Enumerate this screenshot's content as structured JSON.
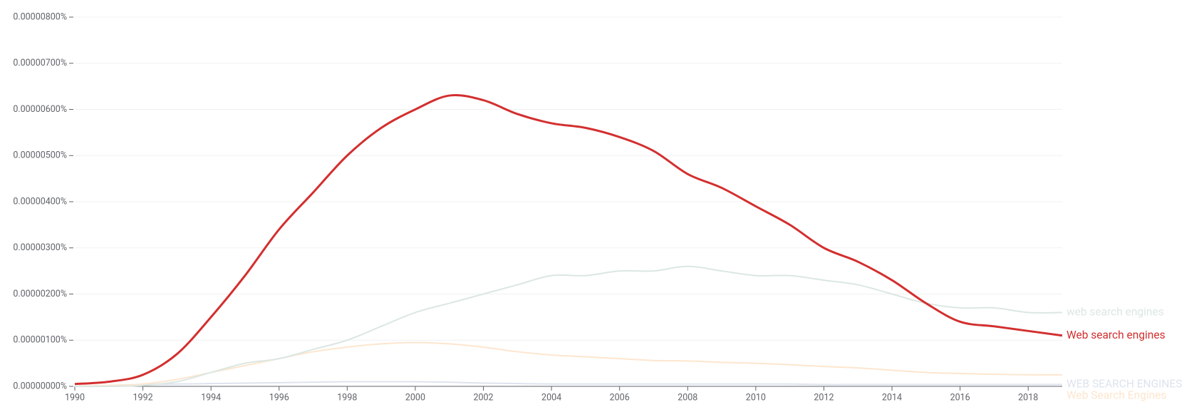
{
  "chart_data": {
    "type": "line",
    "x": [
      1990,
      1991,
      1992,
      1993,
      1994,
      1995,
      1996,
      1997,
      1998,
      1999,
      2000,
      2001,
      2002,
      2003,
      2004,
      2005,
      2006,
      2007,
      2008,
      2009,
      2010,
      2011,
      2012,
      2013,
      2014,
      2015,
      2016,
      2017,
      2018,
      2019
    ],
    "xlim": [
      1990,
      2019
    ],
    "xticks": [
      1990,
      1992,
      1994,
      1996,
      1998,
      2000,
      2002,
      2004,
      2006,
      2008,
      2010,
      2012,
      2014,
      2016,
      2018
    ],
    "ylim": [
      0,
      8e-06
    ],
    "yticks": [
      {
        "value": 0,
        "label": "0.00000000%"
      },
      {
        "value": 1e-06,
        "label": "0.00000100%"
      },
      {
        "value": 2e-06,
        "label": "0.00000200%"
      },
      {
        "value": 3e-06,
        "label": "0.00000300%"
      },
      {
        "value": 4e-06,
        "label": "0.00000400%"
      },
      {
        "value": 5e-06,
        "label": "0.00000500%"
      },
      {
        "value": 6e-06,
        "label": "0.00000600%"
      },
      {
        "value": 7e-06,
        "label": "0.00000700%"
      },
      {
        "value": 8e-06,
        "label": "0.00000800%"
      }
    ],
    "grid": true,
    "series": [
      {
        "name": "WEB SEARCH ENGINES",
        "color": "#dde3ee",
        "values": [
          0,
          2e-08,
          4e-08,
          5e-08,
          6e-08,
          7e-08,
          8e-08,
          9e-08,
          1e-07,
          1e-07,
          1e-07,
          9e-08,
          7e-08,
          6e-08,
          5e-08,
          5e-08,
          5e-08,
          5e-08,
          5e-08,
          5e-08,
          5e-08,
          5e-08,
          4e-08,
          4e-08,
          4e-08,
          4e-08,
          4e-08,
          4e-08,
          4e-08,
          4e-08
        ]
      },
      {
        "name": "Web Search Engines",
        "color": "#fde6cf",
        "values": [
          0,
          2e-08,
          5e-08,
          1.5e-07,
          3e-07,
          4.5e-07,
          6e-07,
          7.5e-07,
          8.5e-07,
          9.2e-07,
          9.5e-07,
          9.2e-07,
          8.5e-07,
          7.5e-07,
          6.8e-07,
          6.4e-07,
          6e-07,
          5.6e-07,
          5.5e-07,
          5.2e-07,
          5e-07,
          4.7e-07,
          4.3e-07,
          4e-07,
          3.5e-07,
          3e-07,
          2.8e-07,
          2.6e-07,
          2.5e-07,
          2.5e-07
        ]
      },
      {
        "name": "web search engines",
        "color": "#dbe7e3",
        "values": [
          0,
          0,
          2e-08,
          1e-07,
          3e-07,
          5e-07,
          6e-07,
          8e-07,
          1e-06,
          1.3e-06,
          1.6e-06,
          1.8e-06,
          2e-06,
          2.2e-06,
          2.4e-06,
          2.4e-06,
          2.5e-06,
          2.5e-06,
          2.6e-06,
          2.5e-06,
          2.4e-06,
          2.4e-06,
          2.3e-06,
          2.2e-06,
          2e-06,
          1.8e-06,
          1.7e-06,
          1.7e-06,
          1.6e-06,
          1.6e-06
        ]
      },
      {
        "name": "Web search engines",
        "color": "#d32f2f",
        "values": [
          5e-08,
          1e-07,
          2.5e-07,
          7e-07,
          1.5e-06,
          2.4e-06,
          3.4e-06,
          4.2e-06,
          5e-06,
          5.6e-06,
          6e-06,
          6.3e-06,
          6.2e-06,
          5.9e-06,
          5.7e-06,
          5.6e-06,
          5.4e-06,
          5.1e-06,
          4.6e-06,
          4.3e-06,
          3.9e-06,
          3.5e-06,
          3e-06,
          2.7e-06,
          2.3e-06,
          1.8e-06,
          1.4e-06,
          1.3e-06,
          1.2e-06,
          1.1e-06
        ]
      }
    ]
  }
}
